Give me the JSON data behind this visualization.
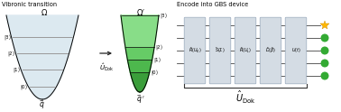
{
  "title_left": "Vibronic transition",
  "title_right": "Encode into GBS device",
  "pot_color_left": "#dce9f0",
  "pot_color_left_line": "#8ab0c0",
  "green_colors": [
    "#3a9e3a",
    "#4db84d",
    "#66cc66",
    "#88dd88"
  ],
  "gate_color": "#d4dce4",
  "gate_border": "#9aaabc",
  "wire_color": "#444444",
  "level_color_left": "#999999",
  "level_color_right": "#333333",
  "arrow_color": "#222222",
  "bracket_color": "#333333",
  "star_color": "#FFB800",
  "dot_color": "#33aa33",
  "background": "#ffffff",
  "gate_labels": [
    "$\\hat{R}(U_K)$",
    "$\\hat{S}(\\Sigma)$",
    "$\\hat{R}(U_L)$",
    "$\\hat{D}(\\hat{\\beta})$",
    "$U(t)$"
  ]
}
